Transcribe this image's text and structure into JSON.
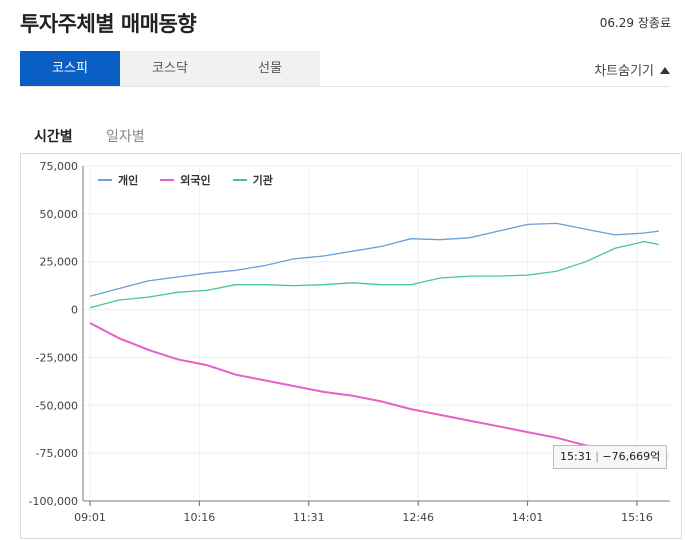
{
  "header": {
    "title": "투자주체별 매매동향",
    "status": "06.29 장종료"
  },
  "tabs": [
    {
      "label": "코스피"
    },
    {
      "label": "코스닥"
    },
    {
      "label": "선물"
    }
  ],
  "chart_toggle": {
    "label": "차트숨기기"
  },
  "subtabs": [
    {
      "label": "시간별"
    },
    {
      "label": "일자별"
    }
  ],
  "tooltip": {
    "time": "15:31",
    "separator": "|",
    "value": "−76,669억"
  },
  "colors": {
    "individual": "#6b9fd8",
    "foreign": "#e85fc9",
    "institution": "#45c98a",
    "active_tab": "#0a5fc4"
  },
  "chart_data": {
    "type": "line",
    "x": [
      "09:01",
      "09:21",
      "09:41",
      "10:01",
      "10:21",
      "10:41",
      "11:01",
      "11:21",
      "11:41",
      "12:01",
      "12:21",
      "12:41",
      "13:01",
      "13:21",
      "13:41",
      "14:01",
      "14:21",
      "14:41",
      "15:01",
      "15:21",
      "15:31"
    ],
    "xticks": [
      "09:01",
      "10:16",
      "11:31",
      "12:46",
      "14:01",
      "15:16"
    ],
    "yticks": [
      "75,000",
      "50,000",
      "25,000",
      "0",
      "-25,000",
      "-50,000",
      "-75,000",
      "-100,000"
    ],
    "ylim": [
      -100000,
      75000
    ],
    "series": [
      {
        "name": "개인",
        "values": [
          7000,
          11000,
          15000,
          17000,
          19000,
          20500,
          23000,
          26500,
          28000,
          30500,
          33000,
          37000,
          36500,
          37500,
          41000,
          44500,
          45000,
          42000,
          39000,
          40000,
          41000
        ]
      },
      {
        "name": "외국인",
        "values": [
          -7000,
          -15000,
          -21000,
          -26000,
          -29000,
          -34000,
          -37000,
          -40000,
          -43000,
          -45000,
          -48000,
          -52000,
          -55000,
          -58000,
          -61000,
          -64000,
          -67000,
          -71000,
          -73000,
          -76000,
          -76669
        ]
      },
      {
        "name": "기관",
        "values": [
          1000,
          5000,
          6500,
          9000,
          10000,
          13000,
          13000,
          12500,
          13000,
          14000,
          13000,
          13000,
          16500,
          17500,
          17500,
          18000,
          20000,
          25000,
          32000,
          35500,
          34000
        ]
      }
    ]
  }
}
